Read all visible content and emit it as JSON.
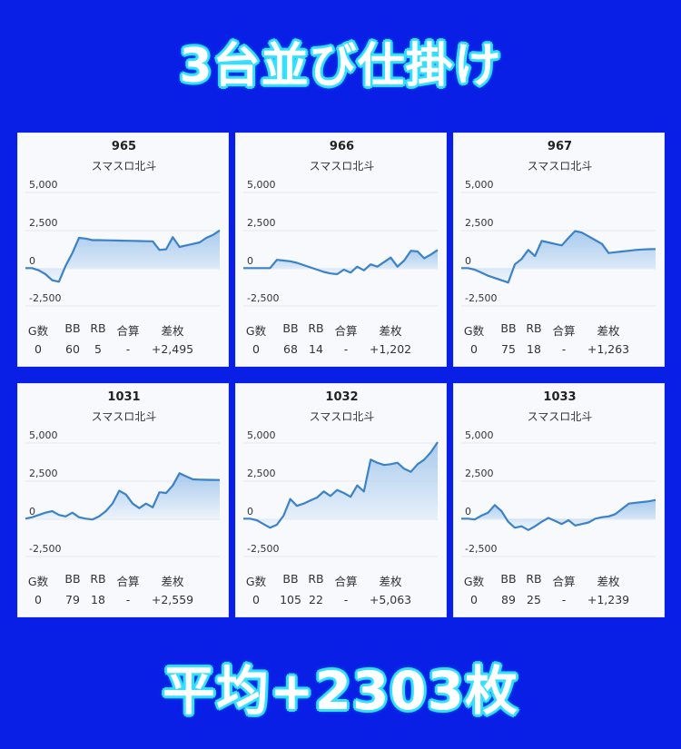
{
  "title": "3台並び仕掛け",
  "footer": "平均+2303枚",
  "colors": {
    "background": "#0a1fe6",
    "line": "#3b82c9",
    "fill_top": "#8fbbe8",
    "fill_bottom": "#eaf2fb",
    "headline_glow": "#35e0ff"
  },
  "stats_headers": [
    "G数",
    "BB",
    "RB",
    "合算",
    "差枚"
  ],
  "chart_data": [
    {
      "type": "area",
      "title": "965",
      "subtitle": "スマスロ北斗",
      "yticks": [
        "5,000",
        "2,500",
        "0",
        "-2,500"
      ],
      "ylim": [
        -2500,
        5000
      ],
      "stats": {
        "g": "0",
        "bb": "60",
        "rb": "5",
        "gassan": "-",
        "samai": "+2,495"
      },
      "values": [
        0,
        0,
        -150,
        -400,
        -800,
        -900,
        150,
        1000,
        2000,
        1950,
        1850,
        1850,
        1840,
        1830,
        1820,
        1810,
        1800,
        1790,
        1780,
        1770,
        1200,
        1250,
        2050,
        1400,
        1500,
        1600,
        1700,
        2000,
        2200,
        2495
      ]
    },
    {
      "type": "area",
      "title": "966",
      "subtitle": "スマスロ北斗",
      "yticks": [
        "5,000",
        "2,500",
        "0",
        "-2,500"
      ],
      "ylim": [
        -2500,
        5000
      ],
      "stats": {
        "g": "0",
        "bb": "68",
        "rb": "14",
        "gassan": "-",
        "samai": "+1,202"
      },
      "values": [
        0,
        0,
        0,
        0,
        0,
        550,
        500,
        450,
        350,
        200,
        50,
        -100,
        -250,
        -350,
        -400,
        -100,
        -300,
        100,
        -150,
        250,
        100,
        400,
        700,
        100,
        500,
        1150,
        1100,
        650,
        900,
        1202
      ]
    },
    {
      "type": "area",
      "title": "967",
      "subtitle": "スマスロ北斗",
      "yticks": [
        "5,000",
        "2,500",
        "0",
        "-2,500"
      ],
      "ylim": [
        -2500,
        5000
      ],
      "stats": {
        "g": "0",
        "bb": "75",
        "rb": "18",
        "gassan": "-",
        "samai": "+1,263"
      },
      "values": [
        0,
        0,
        -100,
        -300,
        -500,
        -650,
        -800,
        -950,
        250,
        600,
        1200,
        800,
        1800,
        1700,
        1600,
        1500,
        2000,
        2450,
        2350,
        2100,
        1850,
        1600,
        1000,
        1050,
        1100,
        1150,
        1200,
        1230,
        1250,
        1263
      ]
    },
    {
      "type": "area",
      "title": "1031",
      "subtitle": "スマスロ北斗",
      "yticks": [
        "5,000",
        "2,500",
        "0",
        "-2,500"
      ],
      "ylim": [
        -2500,
        5000
      ],
      "stats": {
        "g": "0",
        "bb": "79",
        "rb": "18",
        "gassan": "-",
        "samai": "+2,559"
      },
      "values": [
        0,
        100,
        250,
        400,
        500,
        250,
        150,
        400,
        100,
        0,
        -50,
        150,
        500,
        1000,
        1850,
        1600,
        1000,
        700,
        1000,
        750,
        1750,
        1700,
        2200,
        3000,
        2800,
        2600,
        2580,
        2570,
        2565,
        2559
      ]
    },
    {
      "type": "area",
      "title": "1032",
      "subtitle": "スマスロ北斗",
      "yticks": [
        "5,000",
        "2,500",
        "0",
        "-2,500"
      ],
      "ylim": [
        -2500,
        5000
      ],
      "stats": {
        "g": "0",
        "bb": "105",
        "rb": "22",
        "gassan": "-",
        "samai": "+5,063"
      },
      "values": [
        0,
        0,
        -100,
        -350,
        -600,
        -400,
        200,
        1300,
        850,
        1000,
        1200,
        1400,
        1800,
        1500,
        1900,
        1700,
        1450,
        2200,
        1800,
        3900,
        3700,
        3550,
        3600,
        3700,
        3300,
        3100,
        3600,
        3900,
        4400,
        5063
      ]
    },
    {
      "type": "area",
      "title": "1033",
      "subtitle": "スマスロ北斗",
      "yticks": [
        "5,000",
        "2,500",
        "0",
        "-2,500"
      ],
      "ylim": [
        -2500,
        5000
      ],
      "stats": {
        "g": "0",
        "bb": "89",
        "rb": "25",
        "gassan": "-",
        "samai": "+1,239"
      },
      "values": [
        0,
        0,
        -50,
        200,
        400,
        900,
        500,
        -200,
        -600,
        -500,
        -750,
        -500,
        -200,
        50,
        -150,
        -350,
        -100,
        -450,
        -350,
        -250,
        0,
        100,
        150,
        300,
        650,
        1000,
        1050,
        1100,
        1150,
        1239
      ]
    }
  ]
}
